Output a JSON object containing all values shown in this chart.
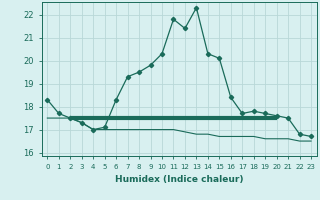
{
  "xlabel": "Humidex (Indice chaleur)",
  "x_values": [
    0,
    1,
    2,
    3,
    4,
    5,
    6,
    7,
    8,
    9,
    10,
    11,
    12,
    13,
    14,
    15,
    16,
    17,
    18,
    19,
    20,
    21,
    22,
    23
  ],
  "line1_y": [
    18.3,
    17.7,
    17.5,
    17.3,
    17.0,
    17.1,
    18.3,
    19.3,
    19.5,
    19.8,
    20.3,
    21.8,
    21.4,
    22.3,
    20.3,
    20.1,
    18.4,
    17.7,
    17.8,
    17.7,
    17.6,
    17.5,
    16.8,
    16.7
  ],
  "line2_y": [
    17.5,
    17.5,
    17.5,
    17.3,
    17.0,
    17.0,
    17.0,
    17.0,
    17.0,
    17.0,
    17.0,
    17.0,
    16.9,
    16.8,
    16.8,
    16.7,
    16.7,
    16.7,
    16.7,
    16.6,
    16.6,
    16.6,
    16.5,
    16.5
  ],
  "flat_x_start": 2,
  "flat_x_end": 20,
  "flat_y": 17.5,
  "color": "#1a6b5a",
  "bg_color": "#d8f0f0",
  "grid_color": "#b8d8d8",
  "ylim": [
    15.85,
    22.55
  ],
  "xlim": [
    -0.5,
    23.5
  ],
  "yticks": [
    16,
    17,
    18,
    19,
    20,
    21,
    22
  ],
  "xtick_fontsize": 5.0,
  "ytick_fontsize": 6.0,
  "xlabel_fontsize": 6.5
}
